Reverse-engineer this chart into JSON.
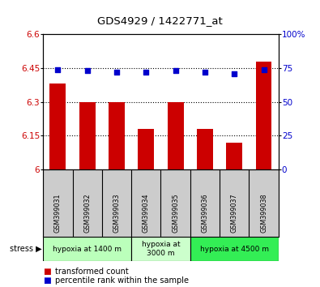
{
  "title": "GDS4929 / 1422771_at",
  "samples": [
    "GSM399031",
    "GSM399032",
    "GSM399033",
    "GSM399034",
    "GSM399035",
    "GSM399036",
    "GSM399037",
    "GSM399038"
  ],
  "bar_values": [
    6.38,
    6.3,
    6.3,
    6.18,
    6.3,
    6.18,
    6.12,
    6.48
  ],
  "scatter_values": [
    74,
    73,
    72,
    72,
    73,
    72,
    71,
    74
  ],
  "ylim_left": [
    6.0,
    6.6
  ],
  "ylim_right": [
    0,
    100
  ],
  "yticks_left": [
    6.0,
    6.15,
    6.3,
    6.45,
    6.6
  ],
  "yticks_right": [
    0,
    25,
    50,
    75,
    100
  ],
  "ytick_labels_left": [
    "6",
    "6.15",
    "6.3",
    "6.45",
    "6.6"
  ],
  "ytick_labels_right": [
    "0",
    "25",
    "50",
    "75",
    "100%"
  ],
  "bar_color": "#cc0000",
  "scatter_color": "#0000cc",
  "plot_bg": "#ffffff",
  "stress_groups": [
    {
      "label": "hypoxia at 1400 m",
      "indices": [
        0,
        1,
        2
      ],
      "color": "#bbffbb"
    },
    {
      "label": "hypoxia at\n3000 m",
      "indices": [
        3,
        4
      ],
      "color": "#ccffcc"
    },
    {
      "label": "hypoxia at 4500 m",
      "indices": [
        5,
        6,
        7
      ],
      "color": "#33ee55"
    }
  ],
  "legend_bar_label": "transformed count",
  "legend_scatter_label": "percentile rank within the sample",
  "tick_row_bg": "#cccccc"
}
